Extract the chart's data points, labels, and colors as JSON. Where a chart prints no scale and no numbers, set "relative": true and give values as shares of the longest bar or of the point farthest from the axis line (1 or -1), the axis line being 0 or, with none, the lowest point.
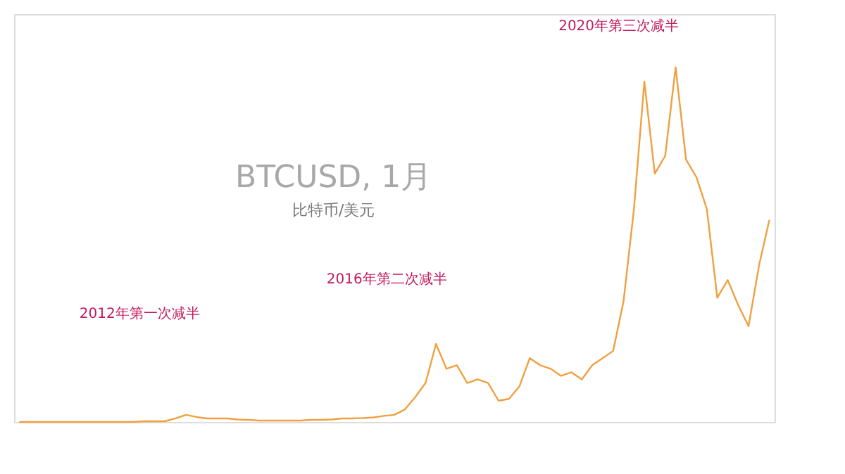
{
  "chart_data": {
    "type": "line",
    "title": "BTCUSD, 1月",
    "subtitle": "比特币/美元",
    "relative": true,
    "tick_labels": false,
    "legend": false,
    "categories": [
      null,
      null,
      null,
      null,
      null,
      null,
      null,
      null,
      null,
      null,
      null,
      null,
      null,
      null,
      null,
      null,
      null,
      null,
      null,
      null,
      null,
      null,
      null,
      null,
      null,
      null,
      null,
      null,
      null,
      null,
      null,
      null,
      null,
      null,
      null,
      null,
      null,
      null,
      null,
      null,
      null,
      null,
      null,
      null,
      null,
      null,
      null,
      null,
      null,
      null,
      null,
      null,
      null,
      null,
      null,
      null,
      null,
      null,
      null,
      null,
      null,
      null,
      null,
      null,
      null,
      null,
      null,
      null,
      null,
      null,
      null,
      null,
      null
    ],
    "series": [
      {
        "color": "#f0a040",
        "values": [
          0,
          0,
          0,
          0,
          0,
          0,
          0,
          0,
          0,
          0,
          0,
          0,
          0.002,
          0.002,
          0.002,
          0.01,
          0.02,
          0.014,
          0.01,
          0.01,
          0.01,
          0.007,
          0.006,
          0.004,
          0.004,
          0.004,
          0.004,
          0.004,
          0.006,
          0.006,
          0.007,
          0.01,
          0.01,
          0.011,
          0.013,
          0.017,
          0.02,
          0.035,
          0.07,
          0.11,
          0.22,
          0.15,
          0.16,
          0.11,
          0.12,
          0.11,
          0.06,
          0.065,
          0.1,
          0.18,
          0.16,
          0.15,
          0.13,
          0.14,
          0.12,
          0.16,
          0.18,
          0.2,
          0.34,
          0.6,
          0.96,
          0.7,
          0.75,
          1,
          0.74,
          0.69,
          0.6,
          0.35,
          0.4,
          0.33,
          0.27,
          0.44,
          0.57
        ]
      }
    ],
    "annotations": [
      "2012年第一次减半",
      "2016年第二次减半",
      "2020年第三次减半"
    ]
  }
}
